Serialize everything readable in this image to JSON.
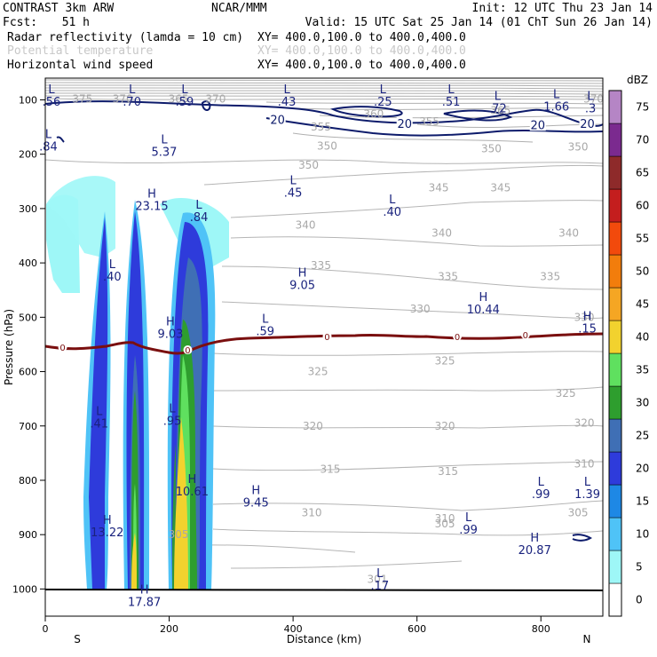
{
  "header": {
    "model": "CONTRAST  3km ARW",
    "org": "NCAR/MMM",
    "init": "Init: 12 UTC Thu 23 Jan 14",
    "fcst_label": "Fcst:",
    "fcst_value": "51 h",
    "valid": "Valid: 15 UTC Sat 25 Jan 14 (01 ChT Sun 26 Jan 14)",
    "fields": [
      {
        "name": "Radar reflectivity (lamda = 10 cm)",
        "xy": "XY= 400.0,100.0 to 400.0,400.0"
      },
      {
        "name": "Potential temperature",
        "xy": "XY= 400.0,100.0 to 400.0,400.0"
      },
      {
        "name": "Horizontal wind speed",
        "xy": "XY= 400.0,100.0 to 400.0,400.0"
      }
    ]
  },
  "colors": {
    "wind": "#0d1b6b",
    "theta": "#a8a8a8",
    "freezing": "#7a0f0f",
    "hl_label": "#1a237e"
  },
  "chart_data": {
    "type": "heatmap",
    "title": "Radar reflectivity (lamda = 10 cm) / Potential temperature / Horizontal wind speed",
    "xlabel": "Distance (km)",
    "ylabel": "Pressure (hPa)",
    "xlim": [
      0,
      900
    ],
    "ylim": [
      1050,
      60
    ],
    "y_scale": "linear",
    "x_ticks": [
      0,
      200,
      400,
      600,
      800
    ],
    "y_ticks": [
      100,
      200,
      300,
      400,
      500,
      600,
      700,
      800,
      900,
      1000
    ],
    "x_end_labels": {
      "left": "S",
      "right": "N"
    },
    "colorbar": {
      "unit": "dBZ",
      "levels": [
        0,
        5,
        10,
        15,
        20,
        25,
        30,
        35,
        40,
        45,
        50,
        55,
        60,
        65,
        70,
        75
      ],
      "colors": [
        "#ffffff",
        "#9ef7f7",
        "#4fc3f7",
        "#1e88e5",
        "#2e3bdb",
        "#3f6fb5",
        "#2e9e2e",
        "#5fe05f",
        "#f2d22e",
        "#f5a623",
        "#f27d0c",
        "#f24a0c",
        "#c41e1e",
        "#8e2a2a",
        "#7b2a8f",
        "#b585c5"
      ]
    },
    "echoes": [
      {
        "name": "west-cells",
        "x_left": 70,
        "x_right": 110,
        "p_top": 330,
        "p_bottom": 1000,
        "max_dbz": 25
      },
      {
        "name": "main-cell",
        "x_left": 140,
        "x_right": 165,
        "p_top": 300,
        "p_bottom": 1000,
        "max_dbz": 40
      },
      {
        "name": "east-cell",
        "x_left": 195,
        "x_right": 245,
        "p_top": 300,
        "p_bottom": 1000,
        "max_dbz": 40
      }
    ],
    "theta_labels": [
      {
        "x": 60,
        "p": 98,
        "text": "375"
      },
      {
        "x": 125,
        "p": 98,
        "text": "370"
      },
      {
        "x": 215,
        "p": 98,
        "text": "365"
      },
      {
        "x": 275,
        "p": 98,
        "text": "370"
      },
      {
        "x": 530,
        "p": 126,
        "text": "360"
      },
      {
        "x": 620,
        "p": 140,
        "text": "355"
      },
      {
        "x": 735,
        "p": 120,
        "text": "365"
      },
      {
        "x": 885,
        "p": 98,
        "text": "370"
      },
      {
        "x": 445,
        "p": 150,
        "text": "355"
      },
      {
        "x": 455,
        "p": 185,
        "text": "350"
      },
      {
        "x": 720,
        "p": 190,
        "text": "350"
      },
      {
        "x": 860,
        "p": 187,
        "text": "350"
      },
      {
        "x": 425,
        "p": 220,
        "text": "350"
      },
      {
        "x": 635,
        "p": 262,
        "text": "345"
      },
      {
        "x": 735,
        "p": 262,
        "text": "345"
      },
      {
        "x": 420,
        "p": 330,
        "text": "340"
      },
      {
        "x": 640,
        "p": 345,
        "text": "340"
      },
      {
        "x": 845,
        "p": 345,
        "text": "340"
      },
      {
        "x": 445,
        "p": 405,
        "text": "335"
      },
      {
        "x": 650,
        "p": 425,
        "text": "335"
      },
      {
        "x": 815,
        "p": 425,
        "text": "335"
      },
      {
        "x": 605,
        "p": 485,
        "text": "330"
      },
      {
        "x": 870,
        "p": 500,
        "text": "330"
      },
      {
        "x": 440,
        "p": 600,
        "text": "325"
      },
      {
        "x": 645,
        "p": 580,
        "text": "325"
      },
      {
        "x": 840,
        "p": 640,
        "text": "325"
      },
      {
        "x": 432,
        "p": 700,
        "text": "320"
      },
      {
        "x": 645,
        "p": 700,
        "text": "320"
      },
      {
        "x": 870,
        "p": 695,
        "text": "320"
      },
      {
        "x": 460,
        "p": 780,
        "text": "315"
      },
      {
        "x": 650,
        "p": 784,
        "text": "315"
      },
      {
        "x": 870,
        "p": 770,
        "text": "310"
      },
      {
        "x": 430,
        "p": 860,
        "text": "310"
      },
      {
        "x": 645,
        "p": 870,
        "text": "310"
      },
      {
        "x": 860,
        "p": 860,
        "text": "305"
      },
      {
        "x": 645,
        "p": 880,
        "text": "305"
      },
      {
        "x": 215,
        "p": 900,
        "text": "305"
      },
      {
        "x": 536,
        "p": 982,
        "text": "301"
      }
    ],
    "wind_labels": [
      {
        "x": 375,
        "p": 138,
        "text": "20"
      },
      {
        "x": 580,
        "p": 145,
        "text": "20"
      },
      {
        "x": 795,
        "p": 147,
        "text": "20"
      },
      {
        "x": 875,
        "p": 145,
        "text": "20"
      }
    ],
    "freezing_level_labels": [
      {
        "x": 28,
        "p": 555,
        "text": "0"
      },
      {
        "x": 230,
        "p": 560,
        "text": "0"
      },
      {
        "x": 455,
        "p": 535,
        "text": "0"
      },
      {
        "x": 665,
        "p": 535,
        "text": "0"
      },
      {
        "x": 775,
        "p": 532,
        "text": "0"
      }
    ],
    "extrema": [
      {
        "x": 10,
        "p": 88,
        "type": "L",
        "value": ".56"
      },
      {
        "x": 140,
        "p": 88,
        "type": "L",
        "value": ".70"
      },
      {
        "x": 225,
        "p": 88,
        "type": "L",
        "value": ".59"
      },
      {
        "x": 390,
        "p": 88,
        "type": "L",
        "value": ".43"
      },
      {
        "x": 545,
        "p": 88,
        "type": "L",
        "value": ".25"
      },
      {
        "x": 655,
        "p": 88,
        "type": "L",
        "value": ".51"
      },
      {
        "x": 730,
        "p": 100,
        "type": "L",
        "value": ".72"
      },
      {
        "x": 825,
        "p": 97,
        "type": "L",
        "value": "1.66"
      },
      {
        "x": 880,
        "p": 100,
        "type": "L",
        "value": ".3"
      },
      {
        "x": 5,
        "p": 170,
        "type": "L",
        "value": ".84"
      },
      {
        "x": 192,
        "p": 180,
        "type": "L",
        "value": "5.37"
      },
      {
        "x": 400,
        "p": 255,
        "type": "L",
        "value": ".45"
      },
      {
        "x": 560,
        "p": 290,
        "type": "L",
        "value": ".40"
      },
      {
        "x": 172,
        "p": 280,
        "type": "H",
        "value": "23.15"
      },
      {
        "x": 248,
        "p": 300,
        "type": "L",
        "value": ".84"
      },
      {
        "x": 108,
        "p": 410,
        "type": "L",
        "value": ".40"
      },
      {
        "x": 415,
        "p": 425,
        "type": "H",
        "value": "9.05"
      },
      {
        "x": 707,
        "p": 470,
        "type": "H",
        "value": "10.44"
      },
      {
        "x": 202,
        "p": 515,
        "type": "H",
        "value": "9.03"
      },
      {
        "x": 355,
        "p": 510,
        "type": "L",
        "value": ".59"
      },
      {
        "x": 875,
        "p": 505,
        "type": "H",
        "value": ".15"
      },
      {
        "x": 87,
        "p": 680,
        "type": "L",
        "value": ".41"
      },
      {
        "x": 205,
        "p": 675,
        "type": "L",
        "value": ".95"
      },
      {
        "x": 237,
        "p": 805,
        "type": "H",
        "value": "10.61"
      },
      {
        "x": 340,
        "p": 825,
        "type": "H",
        "value": "9.45"
      },
      {
        "x": 800,
        "p": 810,
        "type": "L",
        "value": ".99"
      },
      {
        "x": 875,
        "p": 810,
        "type": "L",
        "value": "1.39"
      },
      {
        "x": 683,
        "p": 875,
        "type": "L",
        "value": ".99"
      },
      {
        "x": 100,
        "p": 880,
        "type": "H",
        "value": "13.22"
      },
      {
        "x": 790,
        "p": 913,
        "type": "H",
        "value": "20.87"
      },
      {
        "x": 540,
        "p": 978,
        "type": "L",
        "value": ".17"
      },
      {
        "x": 160,
        "p": 1008,
        "type": "H",
        "value": "17.87"
      }
    ]
  }
}
